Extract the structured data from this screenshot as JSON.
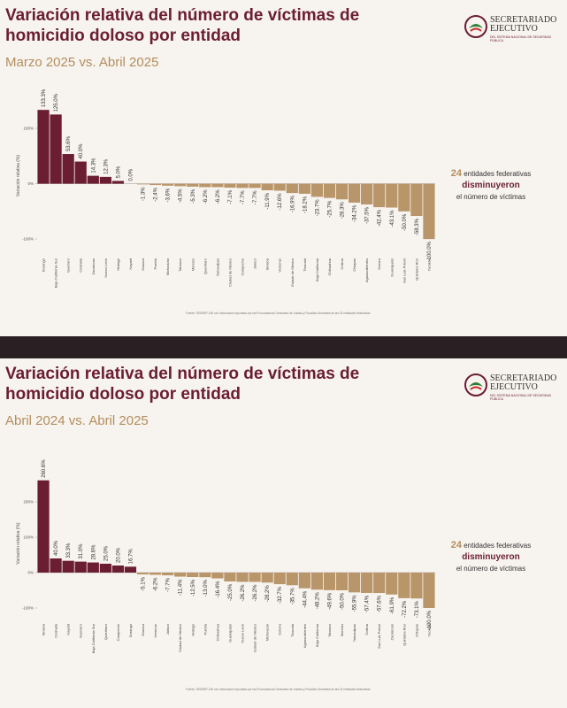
{
  "chart_data": [
    {
      "type": "bar",
      "title": "Variación relativa del número de víctimas de homicidio doloso por entidad",
      "subtitle": "Marzo 2025 vs. Abril 2025",
      "y_label": "Variación relativa (%)",
      "categories": [
        "Durango",
        "Baja California Sur",
        "Guerrero",
        "Coahuila",
        "Zacatecas",
        "Nuevo León",
        "Hidalgo",
        "Nayarit",
        "Oaxaca",
        "Puebla",
        "Michoacán",
        "Tabasco",
        "Morelos",
        "Querétaro",
        "Tamaulipas",
        "Ciudad de México",
        "Campeche",
        "Jalisco",
        "Sinaloa",
        "Veracruz",
        "Estado de México",
        "Tlaxcala",
        "Baja California",
        "Chihuahua",
        "Colima",
        "Chiapas",
        "Aguascalientes",
        "Sonora",
        "Guanajuato",
        "San Luis Potosí",
        "Quintana Roo",
        "Yucatán"
      ],
      "values": [
        133.3,
        125.0,
        53.6,
        40.0,
        14.3,
        12.3,
        5.0,
        0.0,
        -1.3,
        -2.4,
        -3.6,
        -4.5,
        -5.3,
        -6.2,
        -6.2,
        -7.1,
        -7.7,
        -7.7,
        -11.9,
        -12.6,
        -16.9,
        -18.2,
        -23.7,
        -25.7,
        -28.3,
        -34.2,
        -37.5,
        -42.4,
        -43.1,
        -50.0,
        -58.3,
        -100.0
      ],
      "value_labels": [
        "133.3%",
        "125.0%",
        "53.6%",
        "40.0%",
        "14.3%",
        "12.3%",
        "5.0%",
        "0.0%",
        "-1.3%",
        "-2.4%",
        "-3.6%",
        "-4.5%",
        "-5.3%",
        "-6.2%",
        "-6.2%",
        "-7.1%",
        "-7.7%",
        "-7.7%",
        "-11.9%",
        "-12.6%",
        "-16.9%",
        "-18.2%",
        "-23.7%",
        "-25.7%",
        "-28.3%",
        "-34.2%",
        "-37.5%",
        "-42.4%",
        "-43.1%",
        "-50.0%",
        "-58.3%",
        "-100.0%"
      ],
      "ylim": [
        -119,
        148
      ],
      "yticks": [
        {
          "value": -100,
          "label": "-100%"
        },
        {
          "value": 0,
          "label": "0%"
        },
        {
          "value": 100,
          "label": "100%"
        }
      ],
      "color_increase": "#6b1d32",
      "color_decrease": "#b99669"
    },
    {
      "type": "bar",
      "title": "Variación relativa del número de víctimas de homicidio doloso por entidad",
      "subtitle": "Abril 2024 vs. Abril 2025",
      "y_label": "Variación relativa (%)",
      "categories": [
        "Sinaloa",
        "Coahuila",
        "Nayarit",
        "Guerrero",
        "Baja California Sur",
        "Querétaro",
        "Campeche",
        "Durango",
        "Oaxaca",
        "Veracruz",
        "Jalisco",
        "Ciudad de México",
        "Hidalgo",
        "Puebla",
        "Chihuahua",
        "Guanajuato",
        "Nuevo León",
        "Estado de México",
        "Michoacán",
        "Sonora",
        "Tlaxcala",
        "Aguascalientes",
        "Baja California",
        "Tabasco",
        "Morelos",
        "Tamaulipas",
        "Colima",
        "San Luis Potosí",
        "Zacatecas",
        "Quintana Roo",
        "Chiapas",
        "Yucatán"
      ],
      "values": [
        260.6,
        40.0,
        33.3,
        31.0,
        28.6,
        25.0,
        20.0,
        16.7,
        -5.1,
        -6.2,
        -7.7,
        -11.4,
        -12.5,
        -13.0,
        -16.4,
        -25.0,
        -26.2,
        -26.2,
        -28.2,
        -32.7,
        -35.7,
        -44.4,
        -48.2,
        -49.6,
        -50.0,
        -55.9,
        -57.4,
        -57.6,
        -61.9,
        -72.2,
        -73.1,
        -100.0
      ],
      "value_labels": [
        "260.6%",
        "40.0%",
        "33.3%",
        "31.0%",
        "28.6%",
        "25.0%",
        "20.0%",
        "16.7%",
        "-5.1%",
        "-6.2%",
        "-7.7%",
        "-11.4%",
        "-12.5%",
        "-13.0%",
        "-16.4%",
        "-25.0%",
        "-26.2%",
        "-26.2%",
        "-28.2%",
        "-32.7%",
        "-35.7%",
        "-44.4%",
        "-48.2%",
        "-49.6%",
        "-50.0%",
        "-55.9%",
        "-57.4%",
        "-57.6%",
        "-61.9%",
        "-72.2%",
        "-73.1%",
        "-100.0%"
      ],
      "ylim": [
        -110,
        275
      ],
      "yticks": [
        {
          "value": -100,
          "label": "-100%"
        },
        {
          "value": 0,
          "label": "0%"
        },
        {
          "value": 100,
          "label": "100%"
        },
        {
          "value": 200,
          "label": "200%"
        }
      ],
      "color_increase": "#6b1d32",
      "color_decrease": "#b99669"
    }
  ],
  "slides": [
    {
      "logo_title": "SECRETARIADO EJECUTIVO",
      "logo_subtitle": "DEL SISTEMA NACIONAL DE SEGURIDAD PÚBLICA",
      "note_count": "24",
      "note_line1": "entidades federativas",
      "note_verb": "disminuyeron",
      "note_line2": "el número de víctimas",
      "source": "Fuente: SESNSP-CNI con información reportada por las Procuradurías Generales de Justicia y Fiscalías Generales de las 32 entidades federativas"
    },
    {
      "logo_title": "SECRETARIADO EJECUTIVO",
      "logo_subtitle": "DEL SISTEMA NACIONAL DE SEGURIDAD PÚBLICA",
      "note_count": "24",
      "note_line1": "entidades federativas",
      "note_verb": "disminuyeron",
      "note_line2": "el número de víctimas",
      "source": "Fuente: SESNSP-CNI con información reportada por las Procuradurías Generales de Justicia y Fiscalías Generales de las 32 entidades federativas"
    }
  ]
}
